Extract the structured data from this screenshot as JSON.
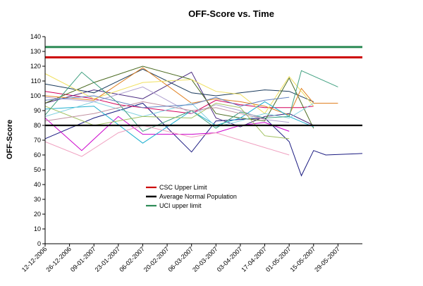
{
  "chart_data": {
    "type": "line",
    "title": "OFF-Score vs. Time",
    "xlabel": "",
    "ylabel": "OFF-Score",
    "ylim": [
      0,
      140
    ],
    "yticks": [
      0,
      10,
      20,
      30,
      40,
      50,
      60,
      70,
      80,
      90,
      100,
      110,
      120,
      130,
      140
    ],
    "xlim": [
      "12-12-2006",
      "12-06-2007"
    ],
    "x_tick_labels": [
      "12-12-2006",
      "26-12-2006",
      "09-01-2007",
      "23-01-2007",
      "06-02-2007",
      "20-02-2007",
      "06-03-2007",
      "20-03-2007",
      "03-04-2007",
      "17-04-2007",
      "01-05-2007",
      "15-05-2007",
      "29-05-2007"
    ],
    "grid": false,
    "legend_position": "lower-middle",
    "reference_lines": [
      {
        "name": "CSC Upper Limit",
        "value": 126,
        "color": "#cc0000"
      },
      {
        "name": "Average Normal Population",
        "value": 80,
        "color": "#000000"
      },
      {
        "name": "UCI upper limit",
        "value": 133,
        "color": "#2e8b57"
      }
    ],
    "series": [
      {
        "color": "#1a1a80",
        "x": [
          "12-12-2006",
          "09-01-2007",
          "06-02-2007",
          "06-03-2007",
          "20-03-2007",
          "17-04-2007",
          "01-05-2007",
          "08-05-2007",
          "15-05-2007",
          "22-05-2007",
          "12-06-2007"
        ],
        "y": [
          71,
          85,
          95,
          62,
          83,
          85,
          69,
          46,
          63,
          60,
          61
        ]
      },
      {
        "color": "#d4005a",
        "x": [
          "12-12-2006",
          "09-01-2007",
          "23-01-2007",
          "06-03-2007",
          "20-03-2007",
          "03-04-2007",
          "17-04-2007",
          "08-05-2007",
          "15-05-2007"
        ],
        "y": [
          103,
          98,
          94,
          88,
          97,
          94,
          92,
          92,
          93
        ]
      },
      {
        "color": "#cc00cc",
        "x": [
          "12-12-2006",
          "02-01-2007",
          "23-01-2007",
          "06-02-2007",
          "06-03-2007",
          "20-03-2007",
          "03-04-2007",
          "17-04-2007",
          "01-05-2007"
        ],
        "y": [
          85,
          63,
          86,
          74,
          74,
          75,
          80,
          82,
          76
        ]
      },
      {
        "color": "#4a2a80",
        "x": [
          "12-12-2006",
          "09-01-2007",
          "06-02-2007",
          "06-03-2007",
          "20-03-2007",
          "03-04-2007",
          "17-04-2007",
          "01-05-2007",
          "15-05-2007"
        ],
        "y": [
          95,
          104,
          98,
          116,
          85,
          79,
          86,
          88,
          80
        ]
      },
      {
        "color": "#1a3a5c",
        "x": [
          "12-12-2006",
          "09-01-2007",
          "06-02-2007",
          "06-03-2007",
          "20-03-2007",
          "03-04-2007",
          "17-04-2007",
          "01-05-2007",
          "15-05-2007"
        ],
        "y": [
          108,
          102,
          118,
          102,
          100,
          102,
          104,
          103,
          96
        ]
      },
      {
        "color": "#4a6a20",
        "x": [
          "12-12-2006",
          "09-01-2007",
          "06-02-2007",
          "06-03-2007",
          "20-03-2007",
          "03-04-2007",
          "17-04-2007",
          "01-05-2007",
          "15-05-2007"
        ],
        "y": [
          95,
          109,
          120,
          111,
          88,
          85,
          83,
          112,
          78
        ]
      },
      {
        "color": "#e08020",
        "x": [
          "12-12-2006",
          "09-01-2007",
          "06-02-2007",
          "06-03-2007",
          "20-03-2007",
          "03-04-2007",
          "17-04-2007",
          "01-05-2007",
          "08-05-2007",
          "15-05-2007",
          "29-05-2007"
        ],
        "y": [
          100,
          97,
          119,
          95,
          98,
          96,
          93,
          87,
          105,
          95,
          95
        ]
      },
      {
        "color": "#f0e060",
        "x": [
          "12-12-2006",
          "09-01-2007",
          "06-02-2007",
          "06-03-2007",
          "20-03-2007",
          "03-04-2007",
          "17-04-2007",
          "01-05-2007",
          "15-05-2007"
        ],
        "y": [
          115,
          98,
          109,
          111,
          103,
          101,
          88,
          113,
          93
        ]
      },
      {
        "color": "#20b0d0",
        "x": [
          "12-12-2006",
          "09-01-2007",
          "06-02-2007",
          "06-03-2007",
          "20-03-2007",
          "03-04-2007",
          "17-04-2007",
          "01-05-2007",
          "15-05-2007"
        ],
        "y": [
          91,
          93,
          68,
          90,
          80,
          85,
          96,
          86,
          79
        ]
      },
      {
        "color": "#80d0e0",
        "x": [
          "12-12-2006",
          "09-01-2007",
          "06-02-2007",
          "06-03-2007",
          "20-03-2007",
          "03-04-2007",
          "17-04-2007",
          "01-05-2007",
          "15-05-2007"
        ],
        "y": [
          86,
          96,
          86,
          95,
          79,
          83,
          88,
          85,
          95
        ]
      },
      {
        "color": "#40a080",
        "x": [
          "12-12-2006",
          "02-01-2007",
          "23-01-2007",
          "06-02-2007",
          "06-03-2007",
          "20-03-2007",
          "03-04-2007",
          "17-04-2007",
          "01-05-2007",
          "08-05-2007",
          "29-05-2007"
        ],
        "y": [
          87,
          116,
          95,
          76,
          90,
          78,
          89,
          85,
          86,
          117,
          106
        ]
      },
      {
        "color": "#f0a0c0",
        "x": [
          "12-12-2006",
          "02-01-2007",
          "23-01-2007",
          "06-02-2007",
          "06-03-2007",
          "20-03-2007",
          "03-04-2007",
          "17-04-2007",
          "01-05-2007"
        ],
        "y": [
          69,
          59,
          75,
          80,
          72,
          75,
          70,
          65,
          60
        ]
      },
      {
        "color": "#b0a0d0",
        "x": [
          "12-12-2006",
          "09-01-2007",
          "06-02-2007",
          "06-03-2007",
          "20-03-2007",
          "03-04-2007",
          "17-04-2007",
          "01-05-2007"
        ],
        "y": [
          99,
          96,
          106,
          88,
          94,
          90,
          84,
          82
        ]
      },
      {
        "color": "#a0c060",
        "x": [
          "12-12-2006",
          "09-01-2007",
          "06-02-2007",
          "06-03-2007",
          "20-03-2007",
          "03-04-2007",
          "17-04-2007",
          "01-05-2007"
        ],
        "y": [
          93,
          80,
          86,
          85,
          95,
          92,
          73,
          71
        ]
      },
      {
        "color": "#c090a0",
        "x": [
          "12-12-2006",
          "09-01-2007",
          "06-02-2007",
          "06-03-2007",
          "20-03-2007",
          "03-04-2007",
          "17-04-2007"
        ],
        "y": [
          83,
          88,
          96,
          90,
          92,
          88,
          84
        ]
      },
      {
        "color": "#6080c0",
        "x": [
          "12-12-2006",
          "09-01-2007",
          "06-02-2007",
          "06-03-2007",
          "20-03-2007",
          "03-04-2007",
          "17-04-2007",
          "01-05-2007"
        ],
        "y": [
          97,
          100,
          92,
          94,
          99,
          93,
          97,
          99
        ]
      }
    ]
  }
}
